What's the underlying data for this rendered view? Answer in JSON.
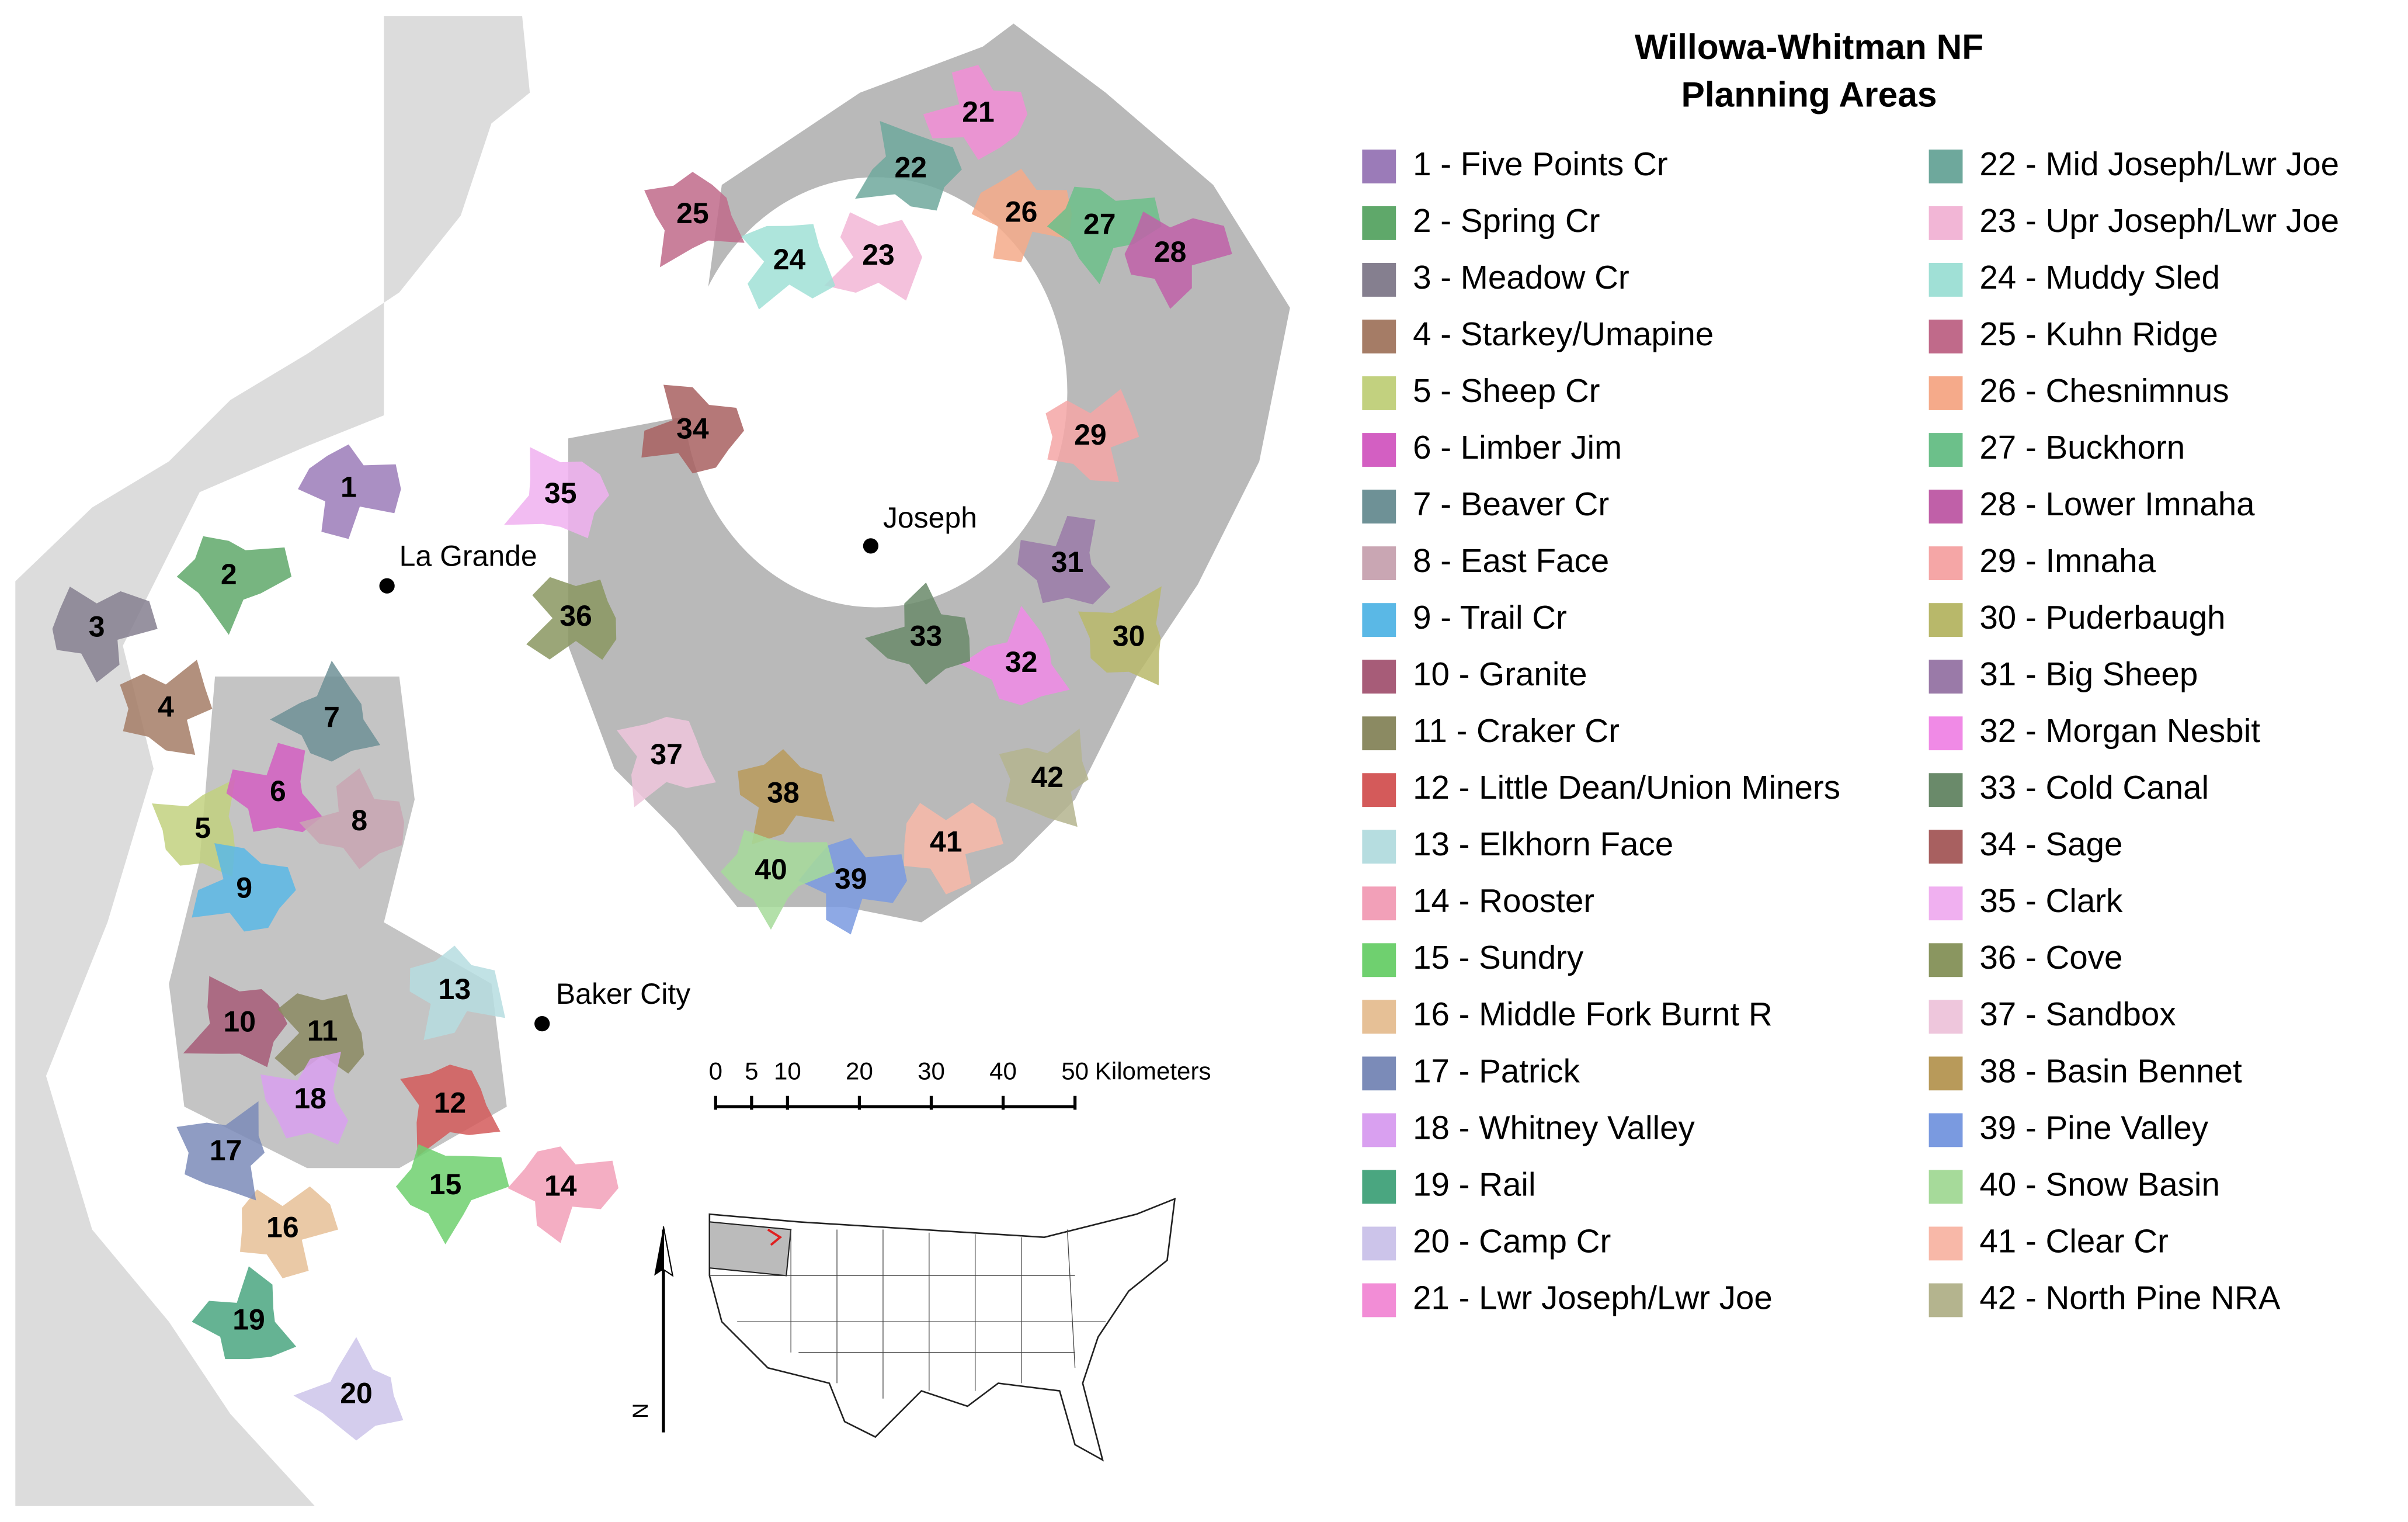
{
  "title_lines": [
    "Willowa-Whitman NF",
    "Planning Areas"
  ],
  "areas": [
    {
      "label": "1",
      "legend": "1 - Five Points Cr",
      "color": "#9b7bb8"
    },
    {
      "label": "2",
      "legend": "2 - Spring Cr",
      "color": "#5fa86a"
    },
    {
      "label": "3",
      "legend": "3 - Meadow Cr",
      "color": "#857f8f"
    },
    {
      "label": "4",
      "legend": "4 - Starkey/Umapine",
      "color": "#a57c66"
    },
    {
      "label": "5",
      "legend": "5 - Sheep Cr",
      "color": "#c2d17f"
    },
    {
      "label": "6",
      "legend": "6 - Limber Jim",
      "color": "#d35fc2"
    },
    {
      "label": "7",
      "legend": "7 - Beaver Cr",
      "color": "#6e9196"
    },
    {
      "label": "8",
      "legend": "8 - East Face",
      "color": "#c9a6b3"
    },
    {
      "label": "9",
      "legend": "9 - Trail Cr",
      "color": "#5ab8e6"
    },
    {
      "label": "10",
      "legend": "10 - Granite",
      "color": "#a75c78"
    },
    {
      "label": "11",
      "legend": "11 - Craker Cr",
      "color": "#8b8a62"
    },
    {
      "label": "12",
      "legend": "12 - Little Dean/Union Miners",
      "color": "#d45a5a"
    },
    {
      "label": "13",
      "legend": "13 - Elkhorn Face",
      "color": "#b6dde0"
    },
    {
      "label": "14",
      "legend": "14 - Rooster",
      "color": "#f2a0b8"
    },
    {
      "label": "15",
      "legend": "15 - Sundry",
      "color": "#6fd06f"
    },
    {
      "label": "16",
      "legend": "16 - Middle Fork Burnt R",
      "color": "#e6c096"
    },
    {
      "label": "17",
      "legend": "17 - Patrick",
      "color": "#7b8bb8"
    },
    {
      "label": "18",
      "legend": "18 - Whitney Valley",
      "color": "#d9a0f0"
    },
    {
      "label": "19",
      "legend": "19 - Rail",
      "color": "#4aa680"
    },
    {
      "label": "20",
      "legend": "20 - Camp Cr",
      "color": "#ccc4ea"
    },
    {
      "label": "21",
      "legend": "21 - Lwr Joseph/Lwr Joe",
      "color": "#f28dd6"
    },
    {
      "label": "22",
      "legend": "22 - Mid Joseph/Lwr Joe",
      "color": "#6ea89c"
    },
    {
      "label": "23",
      "legend": "23 - Upr Joseph/Lwr Joe",
      "color": "#f2b6d6"
    },
    {
      "label": "24",
      "legend": "24 - Muddy Sled",
      "color": "#a0e0d6"
    },
    {
      "label": "25",
      "legend": "25 - Kuhn Ridge",
      "color": "#c06a8a"
    },
    {
      "label": "26",
      "legend": "26 - Chesnimnus",
      "color": "#f5aa8a"
    },
    {
      "label": "27",
      "legend": "27 - Buckhorn",
      "color": "#6cc08a"
    },
    {
      "label": "28",
      "legend": "28 - Lower Imnaha",
      "color": "#c060a8"
    },
    {
      "label": "29",
      "legend": "29 - Imnaha",
      "color": "#f5a6a6"
    },
    {
      "label": "30",
      "legend": "30 - Puderbaugh",
      "color": "#b8b86a"
    },
    {
      "label": "31",
      "legend": "31 - Big Sheep",
      "color": "#9a7aa8"
    },
    {
      "label": "32",
      "legend": "32 - Morgan Nesbit",
      "color": "#f08ae6"
    },
    {
      "label": "33",
      "legend": "33 - Cold Canal",
      "color": "#6a8a6a"
    },
    {
      "label": "34",
      "legend": "34 - Sage",
      "color": "#a86060"
    },
    {
      "label": "35",
      "legend": "35 - Clark",
      "color": "#f0b0f0"
    },
    {
      "label": "36",
      "legend": "36 - Cove",
      "color": "#8a9660"
    },
    {
      "label": "37",
      "legend": "37 - Sandbox",
      "color": "#eec6dc"
    },
    {
      "label": "38",
      "legend": "38 - Basin Bennet",
      "color": "#b89a5a"
    },
    {
      "label": "39",
      "legend": "39 - Pine Valley",
      "color": "#7a9ae0"
    },
    {
      "label": "40",
      "legend": "40 - Snow Basin",
      "color": "#a6da9a"
    },
    {
      "label": "41",
      "legend": "41 - Clear Cr",
      "color": "#f8b8a8"
    },
    {
      "label": "42",
      "legend": "42 - North Pine NRA",
      "color": "#b4b48e"
    }
  ],
  "cities": [
    "La Grande",
    "Joseph",
    "Baker City"
  ],
  "scale_bar": {
    "ticks": [
      0,
      5,
      10,
      20,
      30,
      40,
      50
    ],
    "unit": "Kilometers"
  },
  "north": "N"
}
